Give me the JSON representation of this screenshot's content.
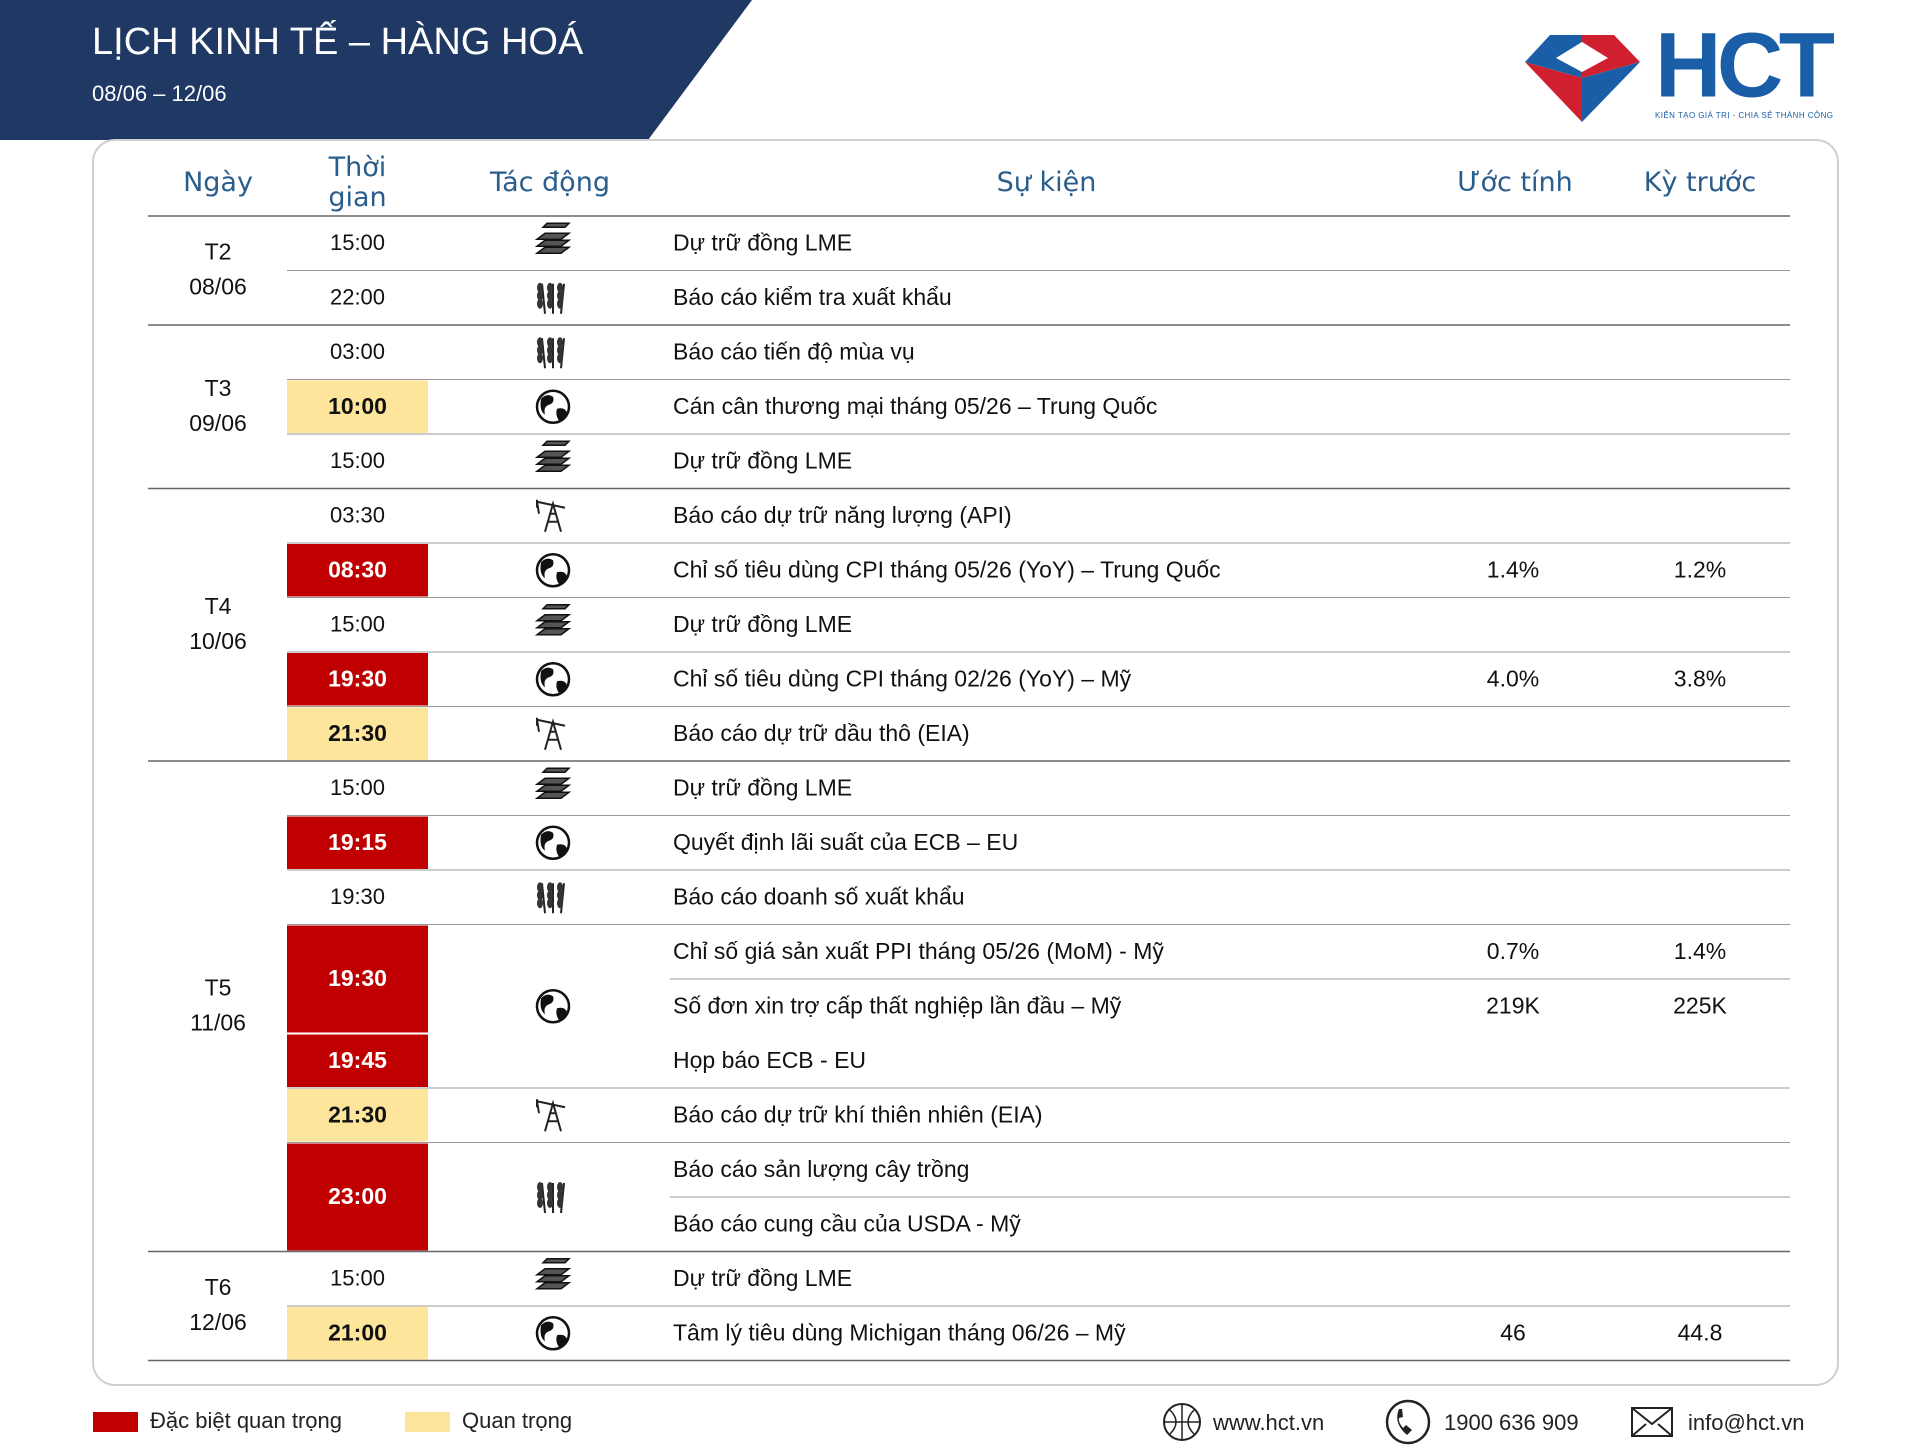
{
  "header": {
    "title": "LỊCH KINH TẾ – HÀNG HOÁ",
    "date_range": "08/06 – 12/06"
  },
  "logo": {
    "text": "HCT",
    "tagline": "KIẾN TẠO GIÁ TRỊ - CHIA SẺ THÀNH CÔNG"
  },
  "level_colors": {
    "high": "#c00000",
    "medium": "#fde59b"
  },
  "table": {
    "columns": [
      "Ngày",
      "Thời gian",
      "Tác động",
      "Sự kiện",
      "Ước tính",
      "Kỳ trước"
    ],
    "days": [
      {
        "day": "T2",
        "date": "08/06",
        "slots": [
          {
            "time": "15:00",
            "icon": "copper",
            "events": [
              {
                "name": "Dự trữ đồng LME"
              }
            ]
          },
          {
            "time": "22:00",
            "icon": "wheat",
            "events": [
              {
                "name": "Báo cáo kiểm tra xuất khẩu"
              }
            ]
          }
        ]
      },
      {
        "day": "T3",
        "date": "09/06",
        "slots": [
          {
            "time": "03:00",
            "icon": "wheat",
            "events": [
              {
                "name": "Báo cáo tiến độ mùa vụ"
              }
            ]
          },
          {
            "time": "10:00",
            "level": "medium",
            "icon": "globe",
            "events": [
              {
                "name": "Cán cân thương mại tháng 05/26 – Trung Quốc"
              }
            ]
          },
          {
            "time": "15:00",
            "icon": "copper",
            "events": [
              {
                "name": "Dự trữ đồng LME"
              }
            ]
          }
        ]
      },
      {
        "day": "T4",
        "date": "10/06",
        "slots": [
          {
            "time": "03:30",
            "icon": "oil",
            "events": [
              {
                "name": "Báo cáo dự trữ năng lượng (API)"
              }
            ]
          },
          {
            "time": "08:30",
            "level": "high",
            "icon": "globe",
            "events": [
              {
                "name": "Chỉ số tiêu dùng CPI tháng 05/26 (YoY) – Trung Quốc",
                "forecast": "1.4%",
                "previous": "1.2%"
              }
            ]
          },
          {
            "time": "15:00",
            "icon": "copper",
            "events": [
              {
                "name": "Dự trữ đồng LME"
              }
            ]
          },
          {
            "time": "19:30",
            "level": "high",
            "icon": "globe",
            "events": [
              {
                "name": "Chỉ số tiêu dùng CPI tháng 02/26 (YoY) – Mỹ",
                "forecast": "4.0%",
                "previous": "3.8%"
              }
            ]
          },
          {
            "time": "21:30",
            "level": "medium",
            "icon": "oil",
            "events": [
              {
                "name": "Báo cáo dự trữ dầu thô (EIA)"
              }
            ]
          }
        ]
      },
      {
        "day": "T5",
        "date": "11/06",
        "slots": [
          {
            "time": "15:00",
            "icon": "copper",
            "events": [
              {
                "name": "Dự trữ đồng LME"
              }
            ]
          },
          {
            "time": "19:15",
            "level": "high",
            "icon": "globe",
            "events": [
              {
                "name": "Quyết định lãi suất của ECB – EU"
              }
            ]
          },
          {
            "time": "19:30",
            "icon": "wheat",
            "events": [
              {
                "name": "Báo cáo doanh số xuất khẩu"
              }
            ]
          },
          {
            "time": "19:30",
            "level": "high",
            "icon": "globe",
            "events": [
              {
                "name": "Chỉ số giá sản xuất PPI tháng 05/26 (MoM) - Mỹ",
                "forecast": "0.7%",
                "previous": "1.4%"
              },
              {
                "name": "Số đơn xin trợ cấp thất nghiệp lần đầu – Mỹ",
                "forecast": "219K",
                "previous": "225K"
              }
            ]
          },
          {
            "time": "19:45",
            "level": "high",
            "events": [
              {
                "name": "Họp báo ECB - EU"
              }
            ]
          },
          {
            "time": "21:30",
            "level": "medium",
            "icon": "oil",
            "events": [
              {
                "name": "Báo cáo dự trữ khí thiên nhiên (EIA)"
              }
            ]
          },
          {
            "time": "23:00",
            "level": "high",
            "icon": "wheat",
            "events": [
              {
                "name": "Báo cáo sản lượng cây trồng"
              },
              {
                "name": "Báo cáo cung cầu của USDA - Mỹ"
              }
            ]
          }
        ]
      },
      {
        "day": "T6",
        "date": "12/06",
        "slots": [
          {
            "time": "15:00",
            "icon": "copper",
            "events": [
              {
                "name": "Dự trữ đồng LME"
              }
            ]
          },
          {
            "time": "21:00",
            "level": "medium",
            "icon": "globe",
            "events": [
              {
                "name": "Tâm lý tiêu dùng Michigan tháng 06/26 – Mỹ",
                "forecast": "46",
                "previous": "44.8"
              }
            ]
          }
        ]
      }
    ]
  },
  "legend": [
    {
      "label": "Đặc biệt quan trọng",
      "level": "high"
    },
    {
      "label": "Quan trọng",
      "level": "medium"
    }
  ],
  "footer": {
    "website": "www.hct.vn",
    "phone": "1900 636 909",
    "email": "info@hct.vn"
  }
}
